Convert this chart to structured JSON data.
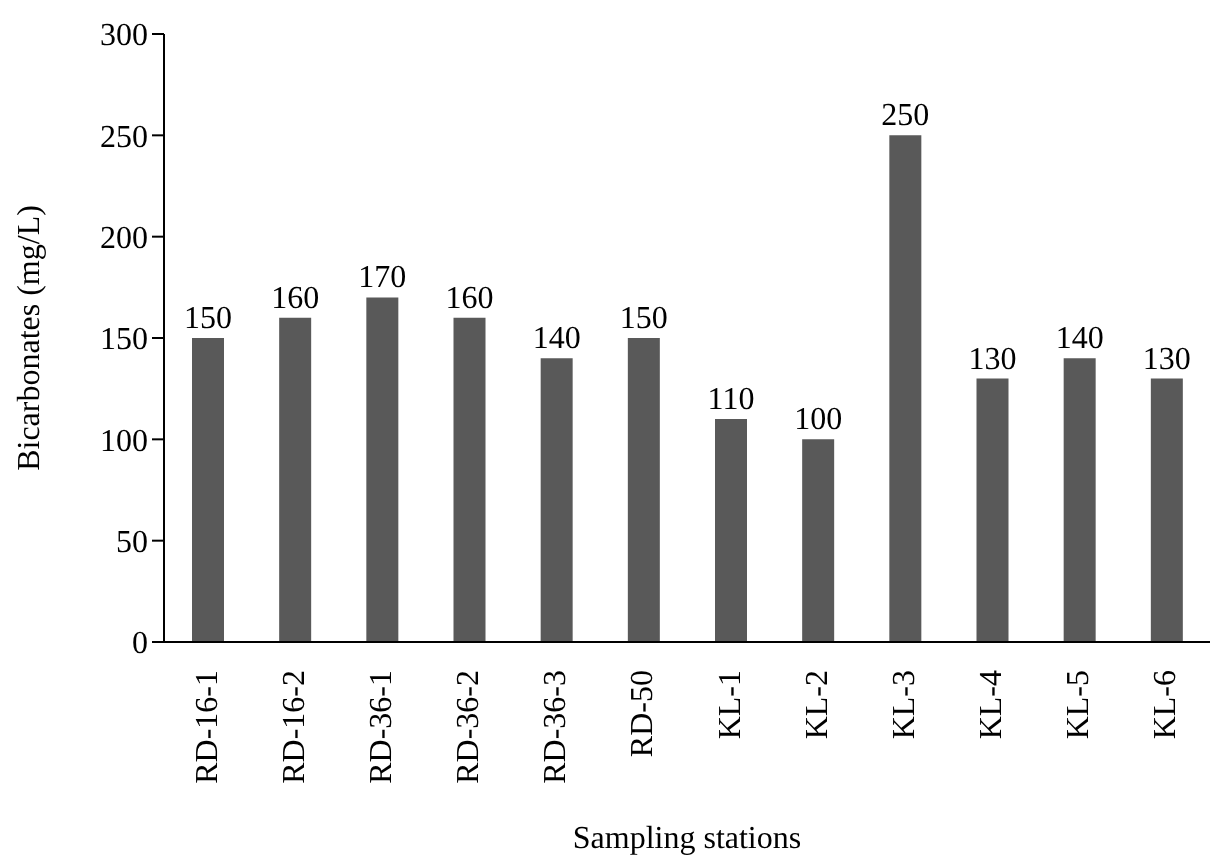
{
  "chart_data": {
    "type": "bar",
    "xlabel": "Sampling stations",
    "ylabel": "Bicarbonates (mg/L)",
    "categories": [
      "RD-16-1",
      "RD-16-2",
      "RD-36-1",
      "RD-36-2",
      "RD-36-3",
      "RD-50",
      "KL-1",
      "KL-2",
      "KL-3",
      "KL-4",
      "KL-5",
      "KL-6"
    ],
    "values": [
      150,
      160,
      170,
      160,
      140,
      150,
      110,
      100,
      250,
      130,
      140,
      130
    ],
    "color": "#595959",
    "ylim": [
      0,
      300
    ],
    "yticks": [
      0,
      50,
      100,
      150,
      200,
      250,
      300
    ],
    "grid": false,
    "legend": false,
    "data_labels": true
  }
}
